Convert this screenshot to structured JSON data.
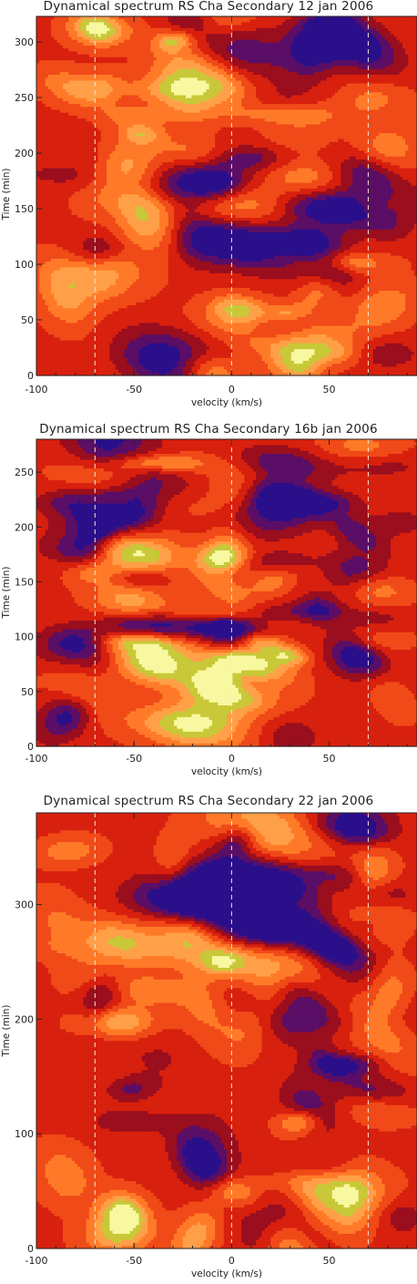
{
  "chart_data": [
    {
      "type": "heatmap",
      "title": "Dynamical spectrum  RS Cha Secondary 12 jan 2006",
      "xlabel": "velocity (km/s)",
      "ylabel": "Time (min)",
      "xlim": [
        -100,
        95
      ],
      "ylim": [
        0,
        323
      ],
      "xticks": [
        "-100",
        "-50",
        "0",
        "50"
      ],
      "yticks": [
        "0",
        "50",
        "100",
        "150",
        "200",
        "250",
        "300"
      ],
      "xtick_values": [
        -100,
        -50,
        0,
        50
      ],
      "ytick_values": [
        0,
        50,
        100,
        150,
        200,
        250,
        300
      ],
      "reference_lines_velocity": [
        -70,
        0,
        70
      ],
      "colormap": [
        "#2a0f8a",
        "#5a0e66",
        "#9a0e1e",
        "#d8200e",
        "#f04a18",
        "#ff7a28",
        "#ffa048",
        "#c8c838",
        "#f8f8a0"
      ],
      "seed": 11
    },
    {
      "type": "heatmap",
      "title": "Dynamical spectrum  RS Cha Secondary 16b jan 2006",
      "xlabel": "velocity (km/s)",
      "ylabel": "Time (min)",
      "xlim": [
        -100,
        95
      ],
      "ylim": [
        0,
        280
      ],
      "xticks": [
        "-100",
        "-50",
        "0",
        "50"
      ],
      "yticks": [
        "0",
        "50",
        "100",
        "150",
        "200",
        "250"
      ],
      "xtick_values": [
        -100,
        -50,
        0,
        50
      ],
      "ytick_values": [
        0,
        50,
        100,
        150,
        200,
        250
      ],
      "reference_lines_velocity": [
        -70,
        0,
        70
      ],
      "colormap": [
        "#2a0f8a",
        "#5a0e66",
        "#9a0e1e",
        "#d8200e",
        "#f04a18",
        "#ff7a28",
        "#ffa048",
        "#c8c838",
        "#f8f8a0"
      ],
      "seed": 23
    },
    {
      "type": "heatmap",
      "title": "Dynamical spectrum  RS Cha Secondary 22 jan 2006",
      "xlabel": "velocity (km/s)",
      "ylabel": "Time (min)",
      "xlim": [
        -100,
        95
      ],
      "ylim": [
        0,
        380
      ],
      "xticks": [
        "-100",
        "-50",
        "0",
        "50"
      ],
      "yticks": [
        "0",
        "100",
        "200",
        "300"
      ],
      "xtick_values": [
        -100,
        -50,
        0,
        50
      ],
      "ytick_values": [
        0,
        100,
        200,
        300
      ],
      "reference_lines_velocity": [
        -70,
        0,
        70
      ],
      "colormap": [
        "#2a0f8a",
        "#5a0e66",
        "#9a0e1e",
        "#d8200e",
        "#f04a18",
        "#ff7a28",
        "#ffa048",
        "#c8c838",
        "#f8f8a0"
      ],
      "seed": 37
    }
  ]
}
